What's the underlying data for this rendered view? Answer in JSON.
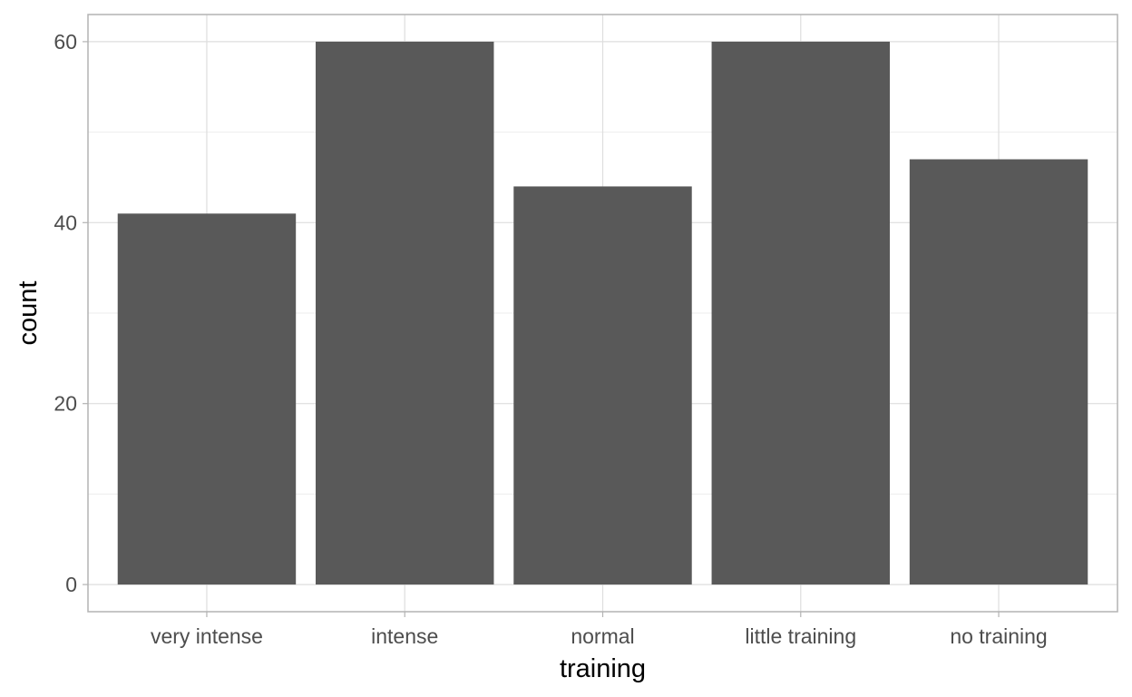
{
  "chart_data": {
    "type": "bar",
    "categories": [
      "very intense",
      "intense",
      "normal",
      "little training",
      "no training"
    ],
    "values": [
      41,
      60,
      44,
      60,
      47
    ],
    "title": "",
    "xlabel": "training",
    "ylabel": "count",
    "ylim": [
      -3,
      63
    ],
    "yticks": [
      0,
      20,
      40,
      60
    ],
    "y_minor_ticks": [
      10,
      30,
      50
    ],
    "grid": true,
    "legend": "none",
    "colors": {
      "bar": "#595959",
      "grid_major": "#dedede",
      "grid_minor": "#ededed",
      "panel_border": "#b3b3b3",
      "tick_label": "#4d4d4d",
      "axis_title": "#000000"
    }
  }
}
